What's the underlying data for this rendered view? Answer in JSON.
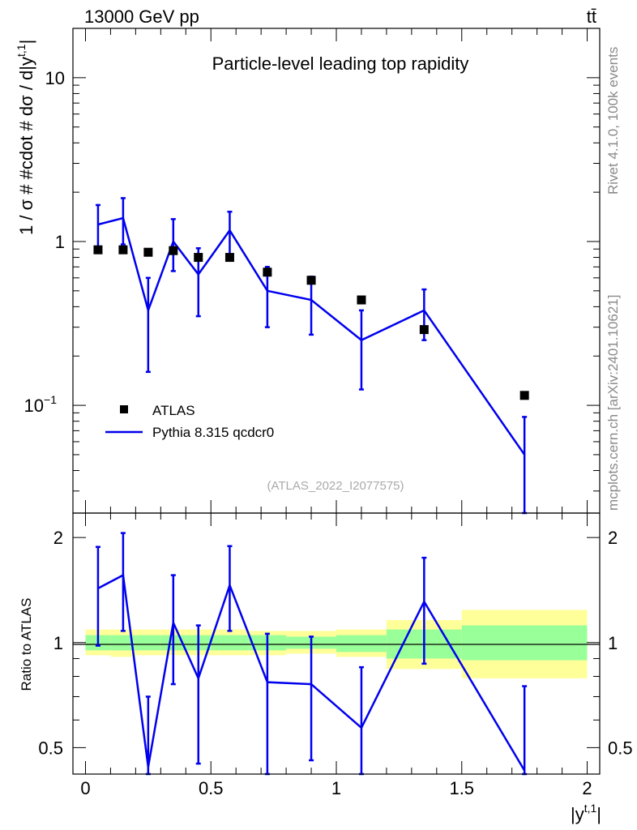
{
  "header": {
    "process": "13000 GeV pp",
    "final_state": "tt̄"
  },
  "side": {
    "rivet": "Rivet 4.1.0,  100k events",
    "source": "mcplots.cern.ch [arXiv:2401.10621]"
  },
  "colors": {
    "mc": "#0000ee",
    "data": "#000000",
    "band_outer": "#ffff99",
    "band_inner": "#99ff99"
  },
  "chart_data": [
    {
      "type": "scatter",
      "panel": "main",
      "title": "Particle-level leading top rapidity",
      "ylabel": "1 / σ # #cdot # dσ / d|y",
      "ylabel_sup": "t,1",
      "yscale": "log",
      "ylim": [
        0.022,
        20
      ],
      "xlim": [
        -0.05,
        2.05
      ],
      "yticks": [
        {
          "value": 0.1,
          "base": "10",
          "exp": "−1"
        },
        {
          "value": 1,
          "label": "1"
        },
        {
          "value": 10,
          "label": "10"
        }
      ],
      "analysis_label": "(ATLAS_2022_I2077575)",
      "legend": {
        "data": "ATLAS",
        "mc": "Pythia 8.315 qcdcr0",
        "position": "bottom-left"
      },
      "bin_edges": [
        0,
        0.1,
        0.2,
        0.3,
        0.4,
        0.5,
        0.65,
        0.8,
        1.0,
        1.2,
        1.5,
        2.0
      ],
      "x": [
        0.05,
        0.15,
        0.25,
        0.35,
        0.45,
        0.575,
        0.725,
        0.9,
        1.1,
        1.35,
        1.75
      ],
      "series": [
        {
          "name": "ATLAS",
          "style": "markers",
          "values": [
            0.89,
            0.89,
            0.86,
            0.88,
            0.8,
            0.8,
            0.65,
            0.58,
            0.44,
            0.29,
            0.115
          ]
        },
        {
          "name": "Pythia 8.315 qcdcr0",
          "style": "line",
          "values": [
            1.27,
            1.39,
            0.38,
            1.0,
            0.63,
            1.17,
            0.5,
            0.44,
            0.25,
            0.38,
            0.05
          ],
          "err_low": [
            0.92,
            0.96,
            0.16,
            0.66,
            0.35,
            0.82,
            0.3,
            0.27,
            0.125,
            0.25,
            0.022
          ],
          "err_high": [
            1.67,
            1.84,
            0.6,
            1.37,
            0.91,
            1.52,
            0.7,
            0.61,
            0.38,
            0.51,
            0.085
          ]
        }
      ]
    },
    {
      "type": "line",
      "panel": "ratio",
      "ylabel": "Ratio to ATLAS",
      "xlabel": "|y",
      "xlabel_sup": "t,1",
      "yscale": "log",
      "ylim": [
        0.42,
        2.35
      ],
      "xlim": [
        -0.05,
        2.05
      ],
      "xticks": [
        {
          "value": 0,
          "label": "0"
        },
        {
          "value": 0.5,
          "label": "0.5"
        },
        {
          "value": 1,
          "label": "1"
        },
        {
          "value": 1.5,
          "label": "1.5"
        },
        {
          "value": 2,
          "label": "2"
        }
      ],
      "yticks": [
        {
          "value": 0.5,
          "label": "0.5"
        },
        {
          "value": 1,
          "label": "1"
        },
        {
          "value": 2,
          "label": "2"
        }
      ],
      "bin_edges": [
        0,
        0.1,
        0.2,
        0.3,
        0.4,
        0.5,
        0.65,
        0.8,
        1.0,
        1.2,
        1.5,
        2.0
      ],
      "band_outer_low": [
        0.92,
        0.91,
        0.92,
        0.92,
        0.92,
        0.92,
        0.92,
        0.93,
        0.91,
        0.84,
        0.79
      ],
      "band_outer_high": [
        1.09,
        1.09,
        1.09,
        1.09,
        1.09,
        1.09,
        1.08,
        1.08,
        1.09,
        1.16,
        1.24
      ],
      "band_inner_low": [
        0.95,
        0.95,
        0.95,
        0.95,
        0.95,
        0.95,
        0.95,
        0.96,
        0.94,
        0.9,
        0.89
      ],
      "band_inner_high": [
        1.05,
        1.05,
        1.05,
        1.05,
        1.05,
        1.05,
        1.05,
        1.04,
        1.05,
        1.09,
        1.12
      ],
      "x": [
        0.05,
        0.15,
        0.25,
        0.35,
        0.45,
        0.575,
        0.725,
        0.9,
        1.1,
        1.35,
        1.75
      ],
      "series": [
        {
          "name": "Pythia 8.315 qcdcr0",
          "values": [
            1.43,
            1.56,
            0.44,
            1.14,
            0.79,
            1.46,
            0.77,
            0.76,
            0.57,
            1.31,
            0.43
          ],
          "err_low": [
            0.98,
            1.08,
            0.42,
            0.76,
            0.45,
            1.08,
            0.42,
            0.46,
            0.42,
            0.87,
            0.42
          ],
          "err_high": [
            1.88,
            2.06,
            0.7,
            1.56,
            1.12,
            1.89,
            1.06,
            1.04,
            0.85,
            1.75,
            0.75
          ]
        }
      ]
    }
  ]
}
